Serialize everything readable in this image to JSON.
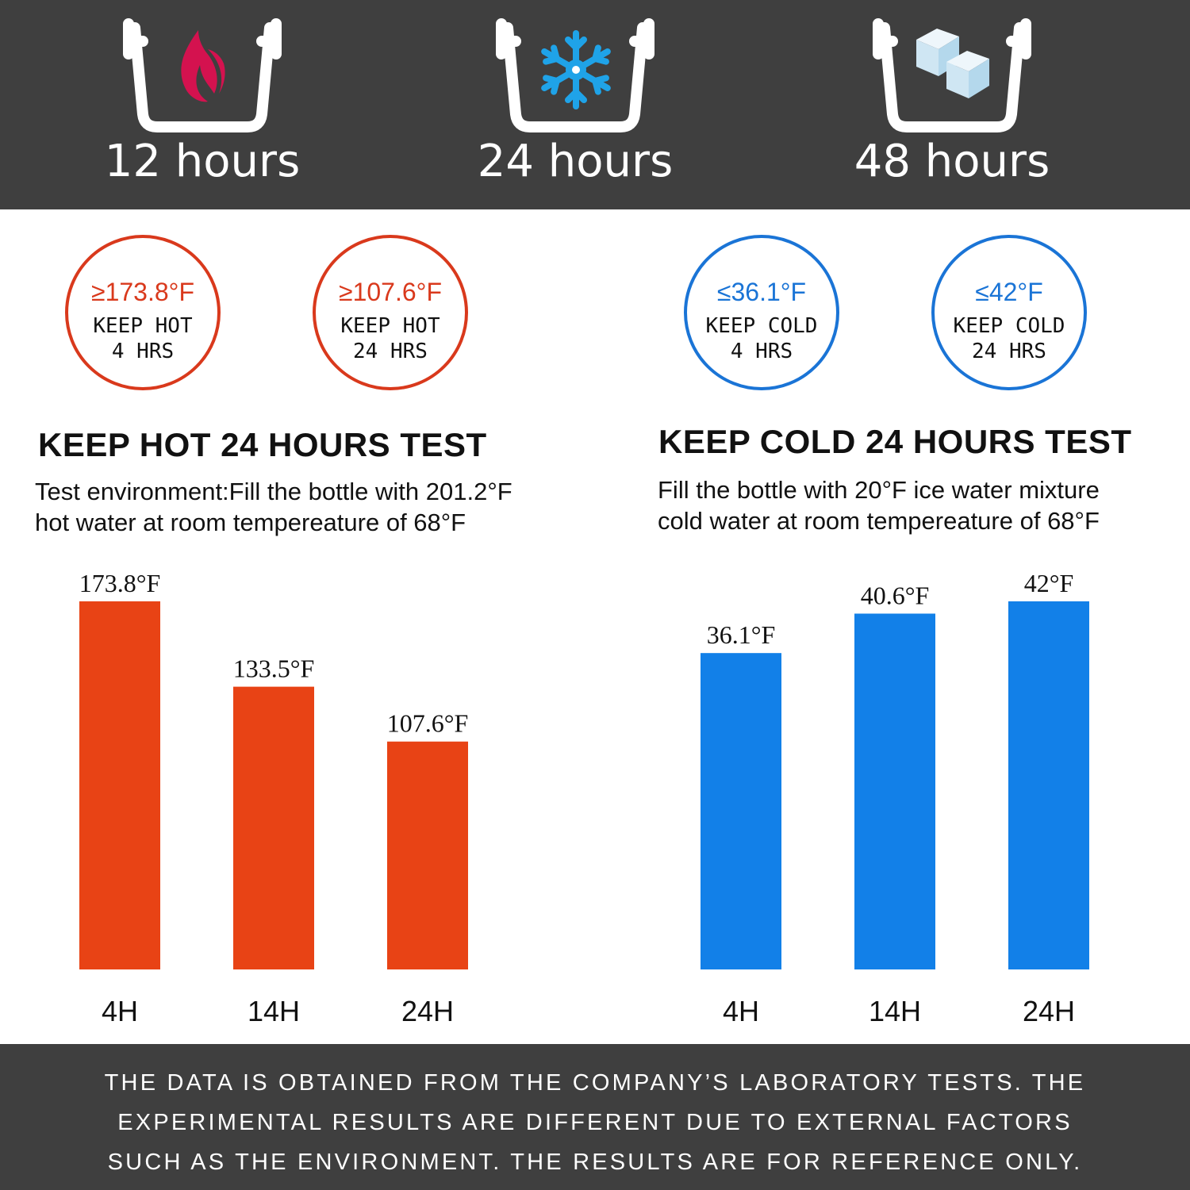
{
  "features": [
    {
      "label": "12 hours",
      "icon": "flame-icon"
    },
    {
      "label": "24 hours",
      "icon": "snowflake-icon"
    },
    {
      "label": "48 hours",
      "icon": "ice-cubes-icon"
    }
  ],
  "badges": {
    "hot": [
      {
        "temp": "≥173.8°F",
        "line1": "KEEP HOT",
        "line2": "4 HRS"
      },
      {
        "temp": "≥107.6°F",
        "line1": "KEEP HOT",
        "line2": "24 HRS"
      }
    ],
    "cold": [
      {
        "temp": "≤36.1°F",
        "line1": "KEEP COLD",
        "line2": "4 HRS"
      },
      {
        "temp": "≤42°F",
        "line1": "KEEP COLD",
        "line2": "24 HRS"
      }
    ]
  },
  "hot_test": {
    "heading": "KEEP HOT 24 HOURS TEST",
    "desc_line1": "Test environment:Fill the bottle with 201.2°F",
    "desc_line2": "hot water at room tempereature of 68°F"
  },
  "cold_test": {
    "heading": "KEEP COLD 24 HOURS TEST",
    "desc_line1": "Fill the bottle with 20°F ice water mixture",
    "desc_line2": "cold water at room tempereature of 68°F"
  },
  "colors": {
    "hot": "#e84315",
    "cold": "#1280e8",
    "band": "#3f3f3f",
    "flame": "#d4124f",
    "snow": "#1fa3e8"
  },
  "chart_data": [
    {
      "type": "bar",
      "categories": [
        "4H",
        "14H",
        "24H"
      ],
      "values": [
        173.8,
        133.5,
        107.6
      ],
      "data_labels": [
        "173.8°F",
        "133.5°F",
        "107.6°F"
      ],
      "title": "",
      "xlabel": "",
      "ylabel": "",
      "grid": false
    },
    {
      "type": "bar",
      "categories": [
        "4H",
        "14H",
        "24H"
      ],
      "values": [
        36.1,
        40.6,
        42
      ],
      "data_labels": [
        "36.1°F",
        "40.6°F",
        "42°F"
      ],
      "title": "",
      "xlabel": "",
      "ylabel": "",
      "grid": false
    }
  ],
  "disclaimer": {
    "line1": "THE DATA IS OBTAINED FROM THE COMPANY’S LABORATORY TESTS. THE",
    "line2": "EXPERIMENTAL RESULTS ARE DIFFERENT DUE TO EXTERNAL FACTORS",
    "line3": "SUCH AS THE ENVIRONMENT. THE RESULTS ARE FOR REFERENCE ONLY."
  }
}
